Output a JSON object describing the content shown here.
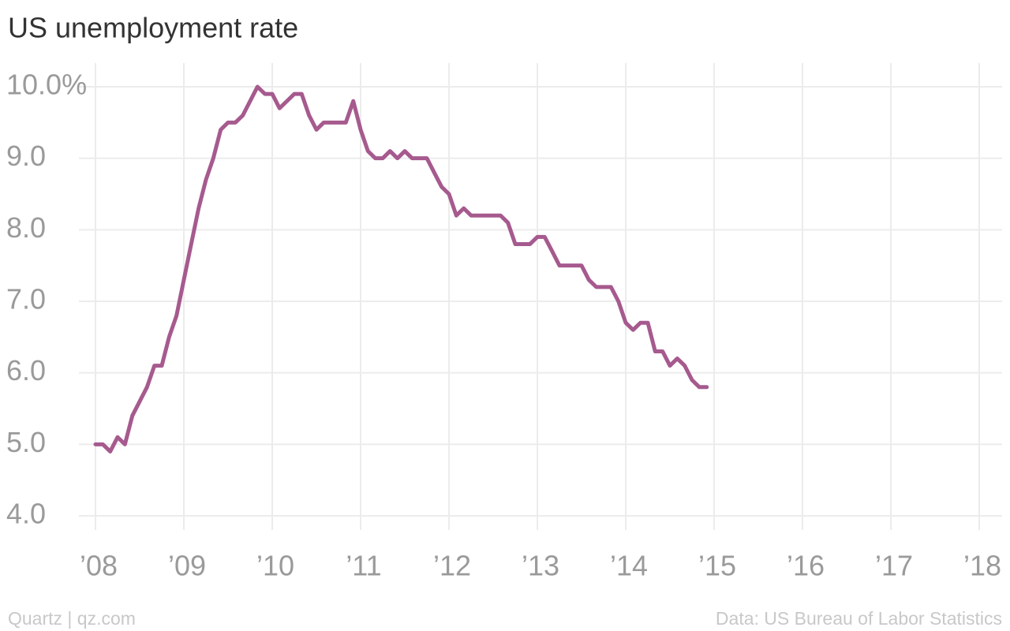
{
  "chart_data": {
    "type": "line",
    "title": "US unemployment rate",
    "source": "Data: US Bureau of Labor Statistics",
    "credit": "Quartz | qz.com",
    "x": [
      2008.0,
      2008.083,
      2008.167,
      2008.25,
      2008.333,
      2008.417,
      2008.5,
      2008.583,
      2008.667,
      2008.75,
      2008.833,
      2008.917,
      2009.0,
      2009.083,
      2009.167,
      2009.25,
      2009.333,
      2009.417,
      2009.5,
      2009.583,
      2009.667,
      2009.75,
      2009.833,
      2009.917,
      2010.0,
      2010.083,
      2010.167,
      2010.25,
      2010.333,
      2010.417,
      2010.5,
      2010.583,
      2010.667,
      2010.75,
      2010.833,
      2010.917,
      2011.0,
      2011.083,
      2011.167,
      2011.25,
      2011.333,
      2011.417,
      2011.5,
      2011.583,
      2011.667,
      2011.75,
      2011.833,
      2011.917,
      2012.0,
      2012.083,
      2012.167,
      2012.25,
      2012.333,
      2012.417,
      2012.5,
      2012.583,
      2012.667,
      2012.75,
      2012.833,
      2012.917,
      2013.0,
      2013.083,
      2013.167,
      2013.25,
      2013.333,
      2013.417,
      2013.5,
      2013.583,
      2013.667,
      2013.75,
      2013.833,
      2013.917,
      2014.0,
      2014.083,
      2014.167,
      2014.25,
      2014.333,
      2014.417,
      2014.5,
      2014.583,
      2014.667,
      2014.75,
      2014.833,
      2014.917
    ],
    "series": [
      {
        "name": "Unemployment rate",
        "color": "#a65a8e",
        "values": [
          5.0,
          5.0,
          4.9,
          5.1,
          5.0,
          5.4,
          5.6,
          5.8,
          6.1,
          6.1,
          6.5,
          6.8,
          7.3,
          7.8,
          8.3,
          8.7,
          9.0,
          9.4,
          9.5,
          9.5,
          9.6,
          9.8,
          10.0,
          9.9,
          9.9,
          9.7,
          9.8,
          9.9,
          9.9,
          9.6,
          9.4,
          9.5,
          9.5,
          9.5,
          9.5,
          9.8,
          9.4,
          9.1,
          9.0,
          9.0,
          9.1,
          9.0,
          9.1,
          9.0,
          9.0,
          9.0,
          8.8,
          8.6,
          8.5,
          8.2,
          8.3,
          8.2,
          8.2,
          8.2,
          8.2,
          8.2,
          8.1,
          7.8,
          7.8,
          7.8,
          7.9,
          7.9,
          7.7,
          7.5,
          7.5,
          7.5,
          7.5,
          7.3,
          7.2,
          7.2,
          7.2,
          7.0,
          6.7,
          6.6,
          6.7,
          6.7,
          6.3,
          6.3,
          6.1,
          6.2,
          6.1,
          5.9,
          5.8,
          5.8
        ]
      }
    ],
    "xlim": [
      2008,
      2018
    ],
    "xticks": [
      {
        "value": 2008,
        "label": "’08"
      },
      {
        "value": 2009,
        "label": "’09"
      },
      {
        "value": 2010,
        "label": "’10"
      },
      {
        "value": 2011,
        "label": "’11"
      },
      {
        "value": 2012,
        "label": "’12"
      },
      {
        "value": 2013,
        "label": "’13"
      },
      {
        "value": 2014,
        "label": "’14"
      },
      {
        "value": 2015,
        "label": "’15"
      },
      {
        "value": 2016,
        "label": "’16"
      },
      {
        "value": 2017,
        "label": "’17"
      },
      {
        "value": 2018,
        "label": "’18"
      }
    ],
    "ylim": [
      4,
      10
    ],
    "yticks": [
      {
        "value": 4,
        "label": "4.0"
      },
      {
        "value": 5,
        "label": "5.0"
      },
      {
        "value": 6,
        "label": "6.0"
      },
      {
        "value": 7,
        "label": "7.0"
      },
      {
        "value": 8,
        "label": "8.0"
      },
      {
        "value": 9,
        "label": "9.0"
      },
      {
        "value": 10,
        "label": "10.0%"
      }
    ],
    "grid": true
  }
}
